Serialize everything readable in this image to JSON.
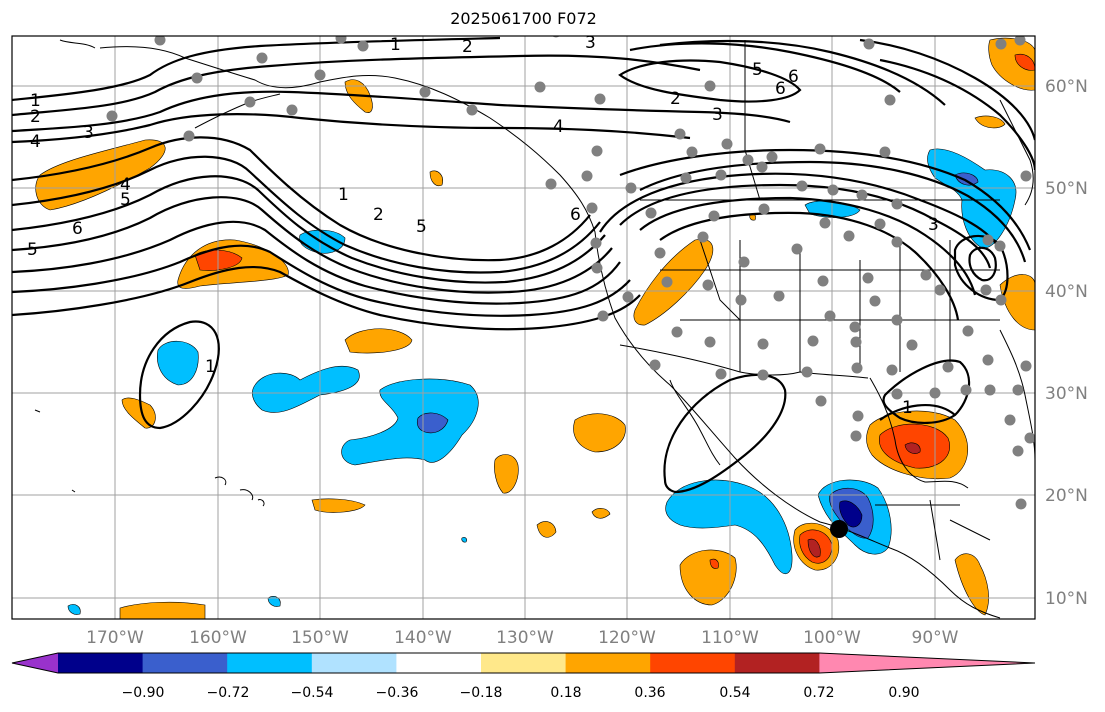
{
  "title": "2025061700 F072",
  "lon_labels": [
    "170°W",
    "160°W",
    "150°W",
    "140°W",
    "130°W",
    "120°W",
    "110°W",
    "100°W",
    "90°W"
  ],
  "lat_labels": [
    "60°N",
    "50°N",
    "40°N",
    "30°N",
    "20°N",
    "10°N"
  ],
  "colorbar": {
    "ticks": [
      "−0.90",
      "−0.72",
      "−0.54",
      "−0.36",
      "−0.18",
      "0.18",
      "0.36",
      "0.54",
      "0.72",
      "0.90"
    ],
    "colors": [
      "#9932cc",
      "#00008b",
      "#3a5fcd",
      "#00bfff",
      "#b0e2ff",
      "#ffffff",
      "#ffe88a",
      "#ffa500",
      "#ff4500",
      "#b22222",
      "#ff88b0"
    ]
  },
  "contour_labels": [
    "1",
    "2",
    "3",
    "4",
    "5",
    "6",
    "1",
    "2",
    "3",
    "4",
    "5",
    "6",
    "1",
    "2",
    "5",
    "6",
    "3",
    "1",
    "1",
    "2",
    "3",
    "4",
    "5",
    "6"
  ]
}
